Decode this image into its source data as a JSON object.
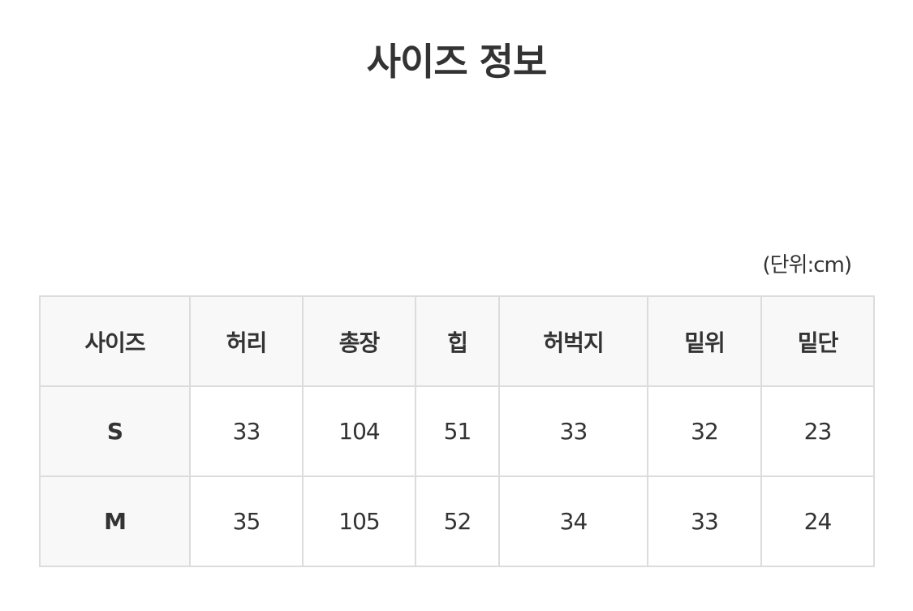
{
  "title": "사이즈 정보",
  "unit": "(단위:cm)",
  "table": {
    "headers": [
      "사이즈",
      "허리",
      "총장",
      "힙",
      "허벅지",
      "밑위",
      "밑단"
    ],
    "rows": [
      [
        "S",
        "33",
        "104",
        "51",
        "33",
        "32",
        "23"
      ],
      [
        "M",
        "35",
        "105",
        "52",
        "34",
        "33",
        "24"
      ]
    ]
  }
}
